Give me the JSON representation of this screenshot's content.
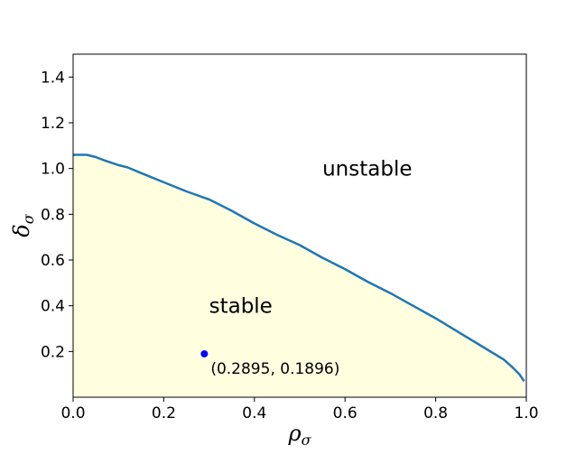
{
  "chart_data": {
    "type": "line",
    "xlabel": "ρ",
    "xlabel_sub": "σ",
    "ylabel": "δ",
    "ylabel_sub": "σ",
    "xlim": [
      0.0,
      1.0
    ],
    "ylim": [
      0.0,
      1.5
    ],
    "xticks": [
      0.0,
      0.2,
      0.4,
      0.6,
      0.8,
      1.0
    ],
    "xtick_labels": [
      "0.0",
      "0.2",
      "0.4",
      "0.6",
      "0.8",
      "1.0"
    ],
    "yticks": [
      0.2,
      0.4,
      0.6,
      0.8,
      1.0,
      1.2,
      1.4
    ],
    "ytick_labels": [
      "0.2",
      "0.4",
      "0.6",
      "0.8",
      "1.0",
      "1.2",
      "1.4"
    ],
    "grid": false,
    "boundary": {
      "color": "#1f77b4",
      "fill_color": "#ffffe0",
      "x": [
        0.0,
        0.03,
        0.05,
        0.07,
        0.1,
        0.12,
        0.15,
        0.2,
        0.25,
        0.3,
        0.35,
        0.4,
        0.45,
        0.5,
        0.55,
        0.6,
        0.65,
        0.7,
        0.75,
        0.8,
        0.85,
        0.9,
        0.95,
        0.97,
        0.985,
        0.995
      ],
      "y": [
        1.06,
        1.06,
        1.05,
        1.035,
        1.015,
        1.005,
        0.98,
        0.94,
        0.9,
        0.865,
        0.815,
        0.76,
        0.71,
        0.665,
        0.61,
        0.56,
        0.505,
        0.455,
        0.4,
        0.345,
        0.285,
        0.225,
        0.165,
        0.13,
        0.1,
        0.07
      ]
    },
    "annotations": [
      {
        "name": "unstable-label",
        "text": "unstable",
        "x": 0.55,
        "y": 1.0
      },
      {
        "name": "stable-label",
        "text": "stable",
        "x": 0.3,
        "y": 0.4
      }
    ],
    "point": {
      "x": 0.2895,
      "y": 0.1896,
      "color": "#0000ff",
      "label": "(0.2895, 0.1896)"
    }
  }
}
